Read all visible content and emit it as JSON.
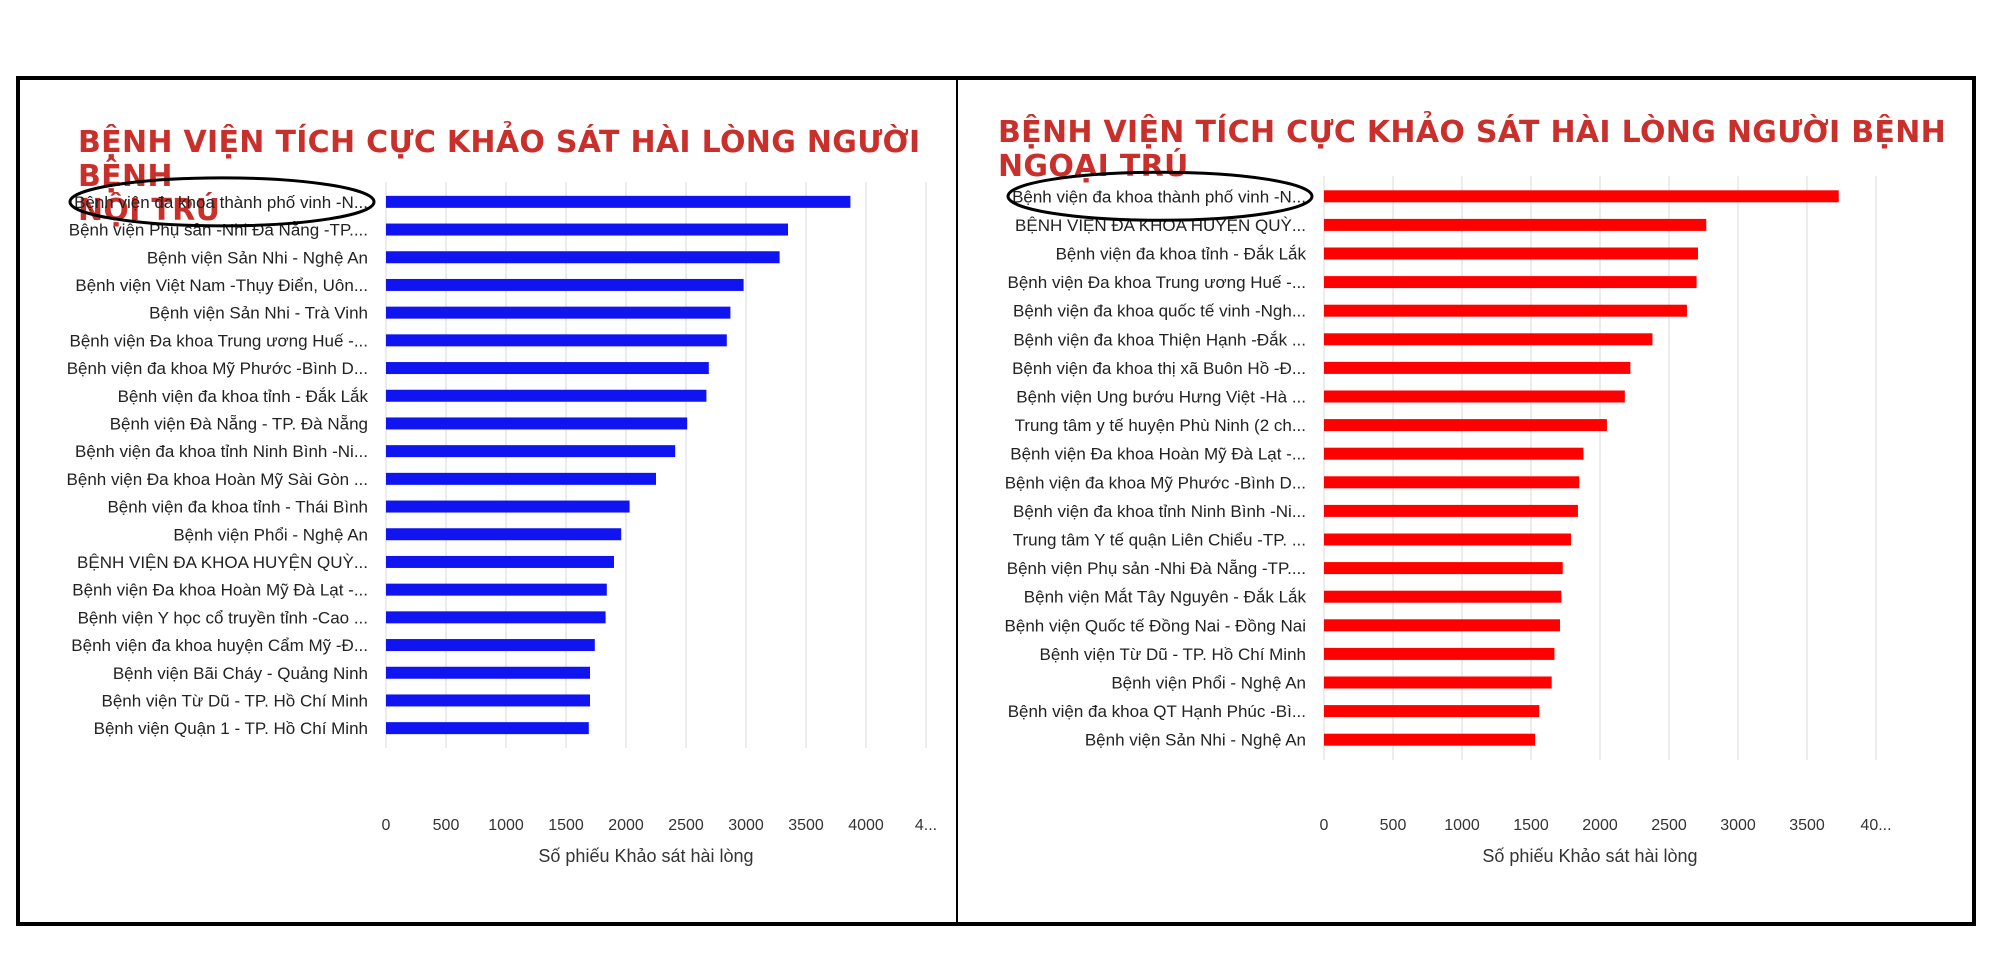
{
  "chart_data": [
    {
      "type": "bar",
      "orientation": "horizontal",
      "title": "BỆNH VIỆN TÍCH CỰC KHẢO SÁT HÀI LÒNG NGƯỜI BỆNH NỘI TRÚ",
      "title_lines": [
        "BỆNH VIỆN TÍCH CỰC KHẢO SÁT HÀI LÒNG NGƯỜI BỆNH",
        "NỘI TRÚ"
      ],
      "xlabel": "Số phiếu Khảo sát hài lòng",
      "xlim": [
        0,
        4500
      ],
      "tick_labels": [
        "0",
        "500",
        "1000",
        "1500",
        "2000",
        "2500",
        "3000",
        "3500",
        "4000",
        "4..."
      ],
      "color": "#0f14f0",
      "highlight_first": true,
      "grid": true,
      "categories": [
        "Bệnh viện đa khoa thành phố vinh -N...",
        "Bệnh viện Phụ sản -Nhi Đà Nẵng -TP....",
        "Bệnh viện Sản Nhi - Nghệ An",
        "Bệnh viện Việt Nam -Thụy Điển, Uôn...",
        "Bệnh viện Sản Nhi - Trà Vinh",
        "Bệnh viện Đa khoa Trung ương Huế -...",
        "Bệnh viện đa khoa Mỹ Phước -Bình D...",
        "Bệnh viện đa khoa tỉnh - Đắk Lắk",
        "Bệnh viện Đà Nẵng - TP. Đà Nẵng",
        "Bệnh viện đa khoa tỉnh Ninh Bình -Ni...",
        "Bệnh viện Đa khoa Hoàn Mỹ Sài Gòn ...",
        "Bệnh viện đa khoa tỉnh - Thái Bình",
        "Bệnh viện Phổi - Nghệ An",
        "BỆNH VIỆN ĐA KHOA HUYỆN QUỲ...",
        "Bệnh viện Đa khoa Hoàn Mỹ Đà Lạt -...",
        "Bệnh viện Y học cổ truyền tỉnh -Cao ...",
        "Bệnh viện đa khoa huyện Cẩm Mỹ -Đ...",
        "Bệnh viện Bãi Cháy - Quảng Ninh",
        "Bệnh viện Từ Dũ - TP. Hồ Chí Minh",
        "Bệnh viện Quận 1 - TP. Hồ Chí Minh"
      ],
      "values": [
        3870,
        3350,
        3280,
        2980,
        2870,
        2840,
        2690,
        2670,
        2510,
        2410,
        2250,
        2030,
        1960,
        1900,
        1840,
        1830,
        1740,
        1700,
        1700,
        1690
      ]
    },
    {
      "type": "bar",
      "orientation": "horizontal",
      "title": "BỆNH VIỆN TÍCH CỰC KHẢO SÁT HÀI LÒNG NGƯỜI BỆNH NGOẠI TRÚ",
      "title_lines": [
        "BỆNH VIỆN TÍCH CỰC KHẢO SÁT HÀI LÒNG NGƯỜI BỆNH",
        "NGOẠI TRÚ"
      ],
      "xlabel": "Số phiếu Khảo sát hài lòng",
      "xlim": [
        0,
        4000
      ],
      "tick_labels": [
        "0",
        "500",
        "1000",
        "1500",
        "2000",
        "2500",
        "3000",
        "3500",
        "40..."
      ],
      "color": "#ff0000",
      "highlight_first": true,
      "grid": true,
      "categories": [
        "Bệnh viện đa khoa thành phố vinh -N...",
        "BỆNH VIỆN ĐA KHOA HUYỆN QUỲ...",
        "Bệnh viện đa khoa tỉnh - Đắk Lắk",
        "Bệnh viện Đa khoa Trung ương Huế -...",
        "Bệnh viện đa khoa quốc tế vinh -Ngh...",
        "Bệnh viện đa khoa Thiện Hạnh -Đắk ...",
        "Bệnh viện đa khoa thị xã Buôn Hồ -Đ...",
        "Bệnh viện Ung bướu Hưng Việt -Hà ...",
        "Trung tâm y tế huyện Phù Ninh (2 ch...",
        "Bệnh viện Đa khoa Hoàn Mỹ Đà Lạt -...",
        "Bệnh viện đa khoa Mỹ Phước -Bình D...",
        "Bệnh viện đa khoa tỉnh Ninh Bình -Ni...",
        "Trung tâm Y tế quận Liên Chiểu -TP. ...",
        "Bệnh viện Phụ sản -Nhi Đà Nẵng -TP....",
        "Bệnh viện Mắt Tây Nguyên - Đắk Lắk",
        "Bệnh viện Quốc tế Đồng Nai - Đồng Nai",
        "Bệnh viện Từ Dũ - TP. Hồ Chí Minh",
        "Bệnh viện Phổi - Nghệ An",
        "Bệnh viện đa khoa QT Hạnh Phúc -Bì...",
        "Bệnh viện Sản Nhi - Nghệ An"
      ],
      "values": [
        3730,
        2770,
        2710,
        2700,
        2630,
        2380,
        2220,
        2180,
        2050,
        1880,
        1850,
        1840,
        1790,
        1730,
        1720,
        1710,
        1670,
        1650,
        1560,
        1530
      ]
    }
  ]
}
